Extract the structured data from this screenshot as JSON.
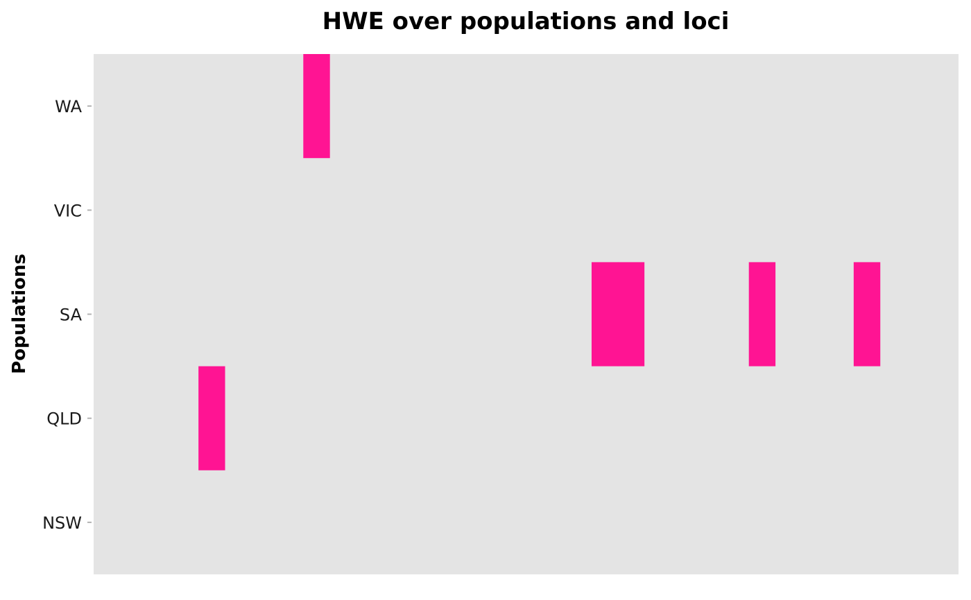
{
  "chart_data": {
    "type": "heatmap",
    "title": "HWE over populations and loci",
    "ylabel": "Populations",
    "xlabel": "",
    "populations": [
      "NSW",
      "QLD",
      "SA",
      "VIC",
      "WA"
    ],
    "n_loci": 33,
    "highlight_color": "#FF1493",
    "panel_color": "#E4E4E4",
    "grid": false,
    "x_ticks_shown": false,
    "cells": [
      {
        "population": "WA",
        "locus_index": 8
      },
      {
        "population": "QLD",
        "locus_index": 4
      },
      {
        "population": "SA",
        "locus_index": 19
      },
      {
        "population": "SA",
        "locus_index": 20
      },
      {
        "population": "SA",
        "locus_index": 25
      },
      {
        "population": "SA",
        "locus_index": 29
      }
    ]
  }
}
